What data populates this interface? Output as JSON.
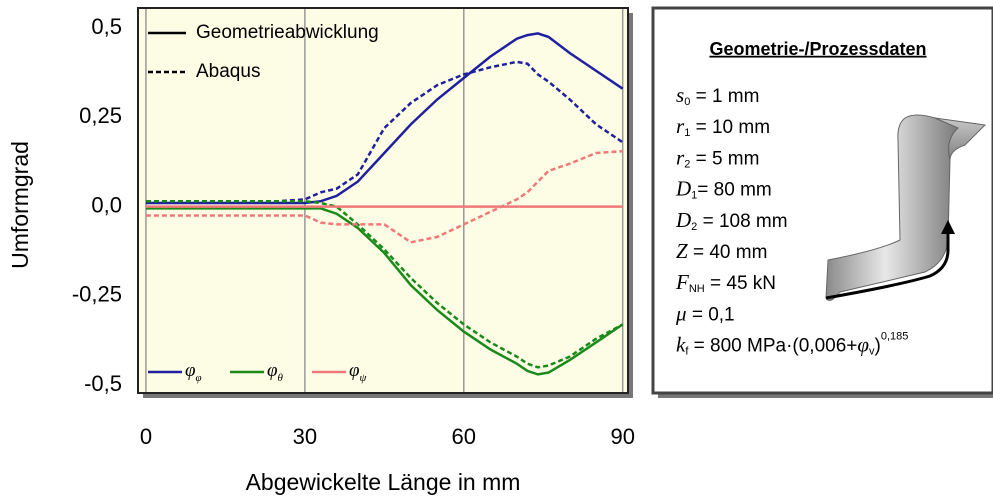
{
  "chart_data": {
    "type": "line",
    "x_label": "Abgewickelte Länge in mm",
    "y_label": "Umformgrad",
    "x": [
      0,
      10,
      20,
      25,
      30,
      33,
      36,
      40,
      45,
      50,
      55,
      60,
      65,
      70,
      72,
      74,
      76,
      80,
      85,
      90
    ],
    "xlim": [
      -1.5,
      91
    ],
    "ylim": [
      -0.522,
      0.556
    ],
    "xticks": [
      0,
      30,
      60,
      90
    ],
    "yticks": [
      {
        "value": 0.5,
        "label": "0,5"
      },
      {
        "value": 0.25,
        "label": "0,25"
      },
      {
        "value": 0,
        "label": "0,0"
      },
      {
        "value": -0.25,
        "label": "-0,25"
      },
      {
        "value": -0.5,
        "label": "-0,5"
      }
    ],
    "xgrid": true,
    "line_styles": [
      {
        "name": "Geometrieabwicklung",
        "dash": "solid"
      },
      {
        "name": "Abaqus",
        "dash": "dashed"
      }
    ],
    "series": [
      {
        "name": "φ",
        "name_sub": "φ",
        "color": "#1f1fa0",
        "values": [
          0.01,
          0.01,
          0.01,
          0.01,
          0.01,
          0.015,
          0.03,
          0.07,
          0.15,
          0.23,
          0.3,
          0.36,
          0.42,
          0.47,
          0.48,
          0.485,
          0.475,
          0.43,
          0.38,
          0.33
        ],
        "values_abaqus": [
          0.015,
          0.015,
          0.015,
          0.015,
          0.02,
          0.04,
          0.05,
          0.09,
          0.22,
          0.29,
          0.34,
          0.37,
          0.39,
          0.405,
          0.4,
          0.37,
          0.35,
          0.3,
          0.23,
          0.18
        ]
      },
      {
        "name": "φ",
        "name_sub": "θ",
        "color": "#1a8a1a",
        "values": [
          -0.005,
          -0.005,
          -0.005,
          -0.005,
          -0.005,
          -0.005,
          -0.02,
          -0.06,
          -0.13,
          -0.22,
          -0.29,
          -0.35,
          -0.4,
          -0.44,
          -0.46,
          -0.47,
          -0.465,
          -0.43,
          -0.38,
          -0.33
        ],
        "values_abaqus": [
          0.015,
          0.015,
          0.015,
          0.015,
          0.015,
          0.01,
          0.0,
          -0.05,
          -0.12,
          -0.2,
          -0.27,
          -0.33,
          -0.38,
          -0.42,
          -0.44,
          -0.45,
          -0.445,
          -0.42,
          -0.37,
          -0.33
        ]
      },
      {
        "name": "φ",
        "name_sub": "ψ",
        "color": "#f07878",
        "values": [
          0,
          0,
          0,
          0,
          0,
          0,
          0,
          0,
          0,
          0,
          0,
          0,
          0,
          0,
          0,
          0,
          0,
          0,
          0,
          0
        ],
        "values_abaqus": [
          -0.025,
          -0.025,
          -0.025,
          -0.025,
          -0.025,
          -0.045,
          -0.05,
          -0.05,
          -0.05,
          -0.1,
          -0.085,
          -0.05,
          -0.015,
          0.02,
          0.04,
          0.07,
          0.1,
          0.12,
          0.15,
          0.155
        ]
      }
    ]
  },
  "panel": {
    "title": "Geometrie-/Prozessdaten",
    "lines": [
      [
        {
          "t": "s",
          "style": "i"
        },
        {
          "t": "0",
          "style": "sub"
        },
        {
          "t": " = 1 mm"
        }
      ],
      [
        {
          "t": "r",
          "style": "i"
        },
        {
          "t": "1",
          "style": "sub"
        },
        {
          "t": " = 10 mm"
        }
      ],
      [
        {
          "t": "r",
          "style": "i"
        },
        {
          "t": "2",
          "style": "sub"
        },
        {
          "t": " = 5 mm"
        }
      ],
      [
        {
          "t": "D",
          "style": "i"
        },
        {
          "t": "1",
          "style": "sub"
        },
        {
          "t": "= 80 mm"
        }
      ],
      [
        {
          "t": "D",
          "style": "i"
        },
        {
          "t": "2",
          "style": "sub"
        },
        {
          "t": " = 108 mm"
        }
      ],
      [
        {
          "t": "Z",
          "style": "i"
        },
        {
          "t": " = 40 mm"
        }
      ],
      [
        {
          "t": "F",
          "style": "i"
        },
        {
          "t": "NH",
          "style": "sub"
        },
        {
          "t": " = 45 kN"
        }
      ],
      [
        {
          "t": "μ",
          "style": "i"
        },
        {
          "t": " = 0,1"
        }
      ],
      [
        {
          "t": "k",
          "style": "i"
        },
        {
          "t": "f",
          "style": "sub"
        },
        {
          "t": " = 800 MPa·(0,006+"
        },
        {
          "t": "φ",
          "style": "i"
        },
        {
          "t": "v",
          "style": "sub"
        },
        {
          "t": ")"
        },
        {
          "t": "0,185",
          "style": "sup"
        }
      ]
    ]
  }
}
